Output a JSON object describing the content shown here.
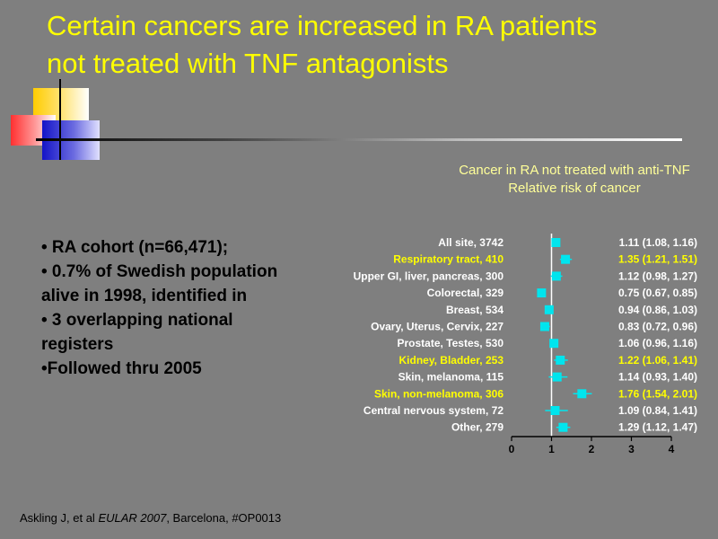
{
  "slide": {
    "title_line1": "Certain cancers are increased in RA patients",
    "title_line2": "not treated with TNF antagonists"
  },
  "chart_heading": {
    "line1": "Cancer in RA not treated with anti-TNF",
    "line2": "Relative risk of cancer"
  },
  "bullets": [
    "• RA cohort (n=66,471);",
    "• 0.7% of Swedish population alive in 1998, identified in",
    "• 3 overlapping national registers",
    "•Followed thru 2005"
  ],
  "citation": {
    "authors": "Askling J, et al ",
    "journal": "EULAR 2007",
    "rest": ", Barcelona, #OP0013"
  },
  "colors": {
    "background": "#7f7f7f",
    "title": "#ffff00",
    "highlight": "#ffff00",
    "normal_label": "#ffffff",
    "marker": "#00e5ee",
    "reference_line": "#ffffff"
  },
  "chart_data": {
    "type": "scatter",
    "subtype": "forest-plot",
    "xlim": [
      0,
      4
    ],
    "xticks": [
      "0",
      "1",
      "2",
      "3",
      "4"
    ],
    "reference_line": 1,
    "rows": [
      {
        "label": "All site, 3742",
        "rr": 1.11,
        "lo": 1.08,
        "hi": 1.16,
        "ci_text": "1.11 (1.08, 1.16)",
        "highlight": false
      },
      {
        "label": "Respiratory tract, 410",
        "rr": 1.35,
        "lo": 1.21,
        "hi": 1.51,
        "ci_text": "1.35 (1.21, 1.51)",
        "highlight": true
      },
      {
        "label": "Upper GI, liver, pancreas, 300",
        "rr": 1.12,
        "lo": 0.98,
        "hi": 1.27,
        "ci_text": "1.12 (0.98, 1.27)",
        "highlight": false
      },
      {
        "label": "Colorectal, 329",
        "rr": 0.75,
        "lo": 0.67,
        "hi": 0.85,
        "ci_text": "0.75 (0.67, 0.85)",
        "highlight": false
      },
      {
        "label": "Breast, 534",
        "rr": 0.94,
        "lo": 0.86,
        "hi": 1.03,
        "ci_text": "0.94 (0.86, 1.03)",
        "highlight": false
      },
      {
        "label": "Ovary, Uterus, Cervix, 227",
        "rr": 0.83,
        "lo": 0.72,
        "hi": 0.96,
        "ci_text": "0.83 (0.72, 0.96)",
        "highlight": false
      },
      {
        "label": "Prostate, Testes, 530",
        "rr": 1.06,
        "lo": 0.96,
        "hi": 1.16,
        "ci_text": "1.06 (0.96, 1.16)",
        "highlight": false
      },
      {
        "label": "Kidney, Bladder, 253",
        "rr": 1.22,
        "lo": 1.06,
        "hi": 1.41,
        "ci_text": "1.22 (1.06, 1.41)",
        "highlight": true
      },
      {
        "label": "Skin, melanoma, 115",
        "rr": 1.14,
        "lo": 0.93,
        "hi": 1.4,
        "ci_text": "1.14 (0.93, 1.40)",
        "highlight": false
      },
      {
        "label": "Skin, non-melanoma, 306",
        "rr": 1.76,
        "lo": 1.54,
        "hi": 2.01,
        "ci_text": "1.76 (1.54, 2.01)",
        "highlight": true
      },
      {
        "label": "Central nervous system, 72",
        "rr": 1.09,
        "lo": 0.84,
        "hi": 1.41,
        "ci_text": "1.09 (0.84, 1.41)",
        "highlight": false
      },
      {
        "label": "Other, 279",
        "rr": 1.29,
        "lo": 1.12,
        "hi": 1.47,
        "ci_text": "1.29 (1.12, 1.47)",
        "highlight": false
      }
    ]
  }
}
